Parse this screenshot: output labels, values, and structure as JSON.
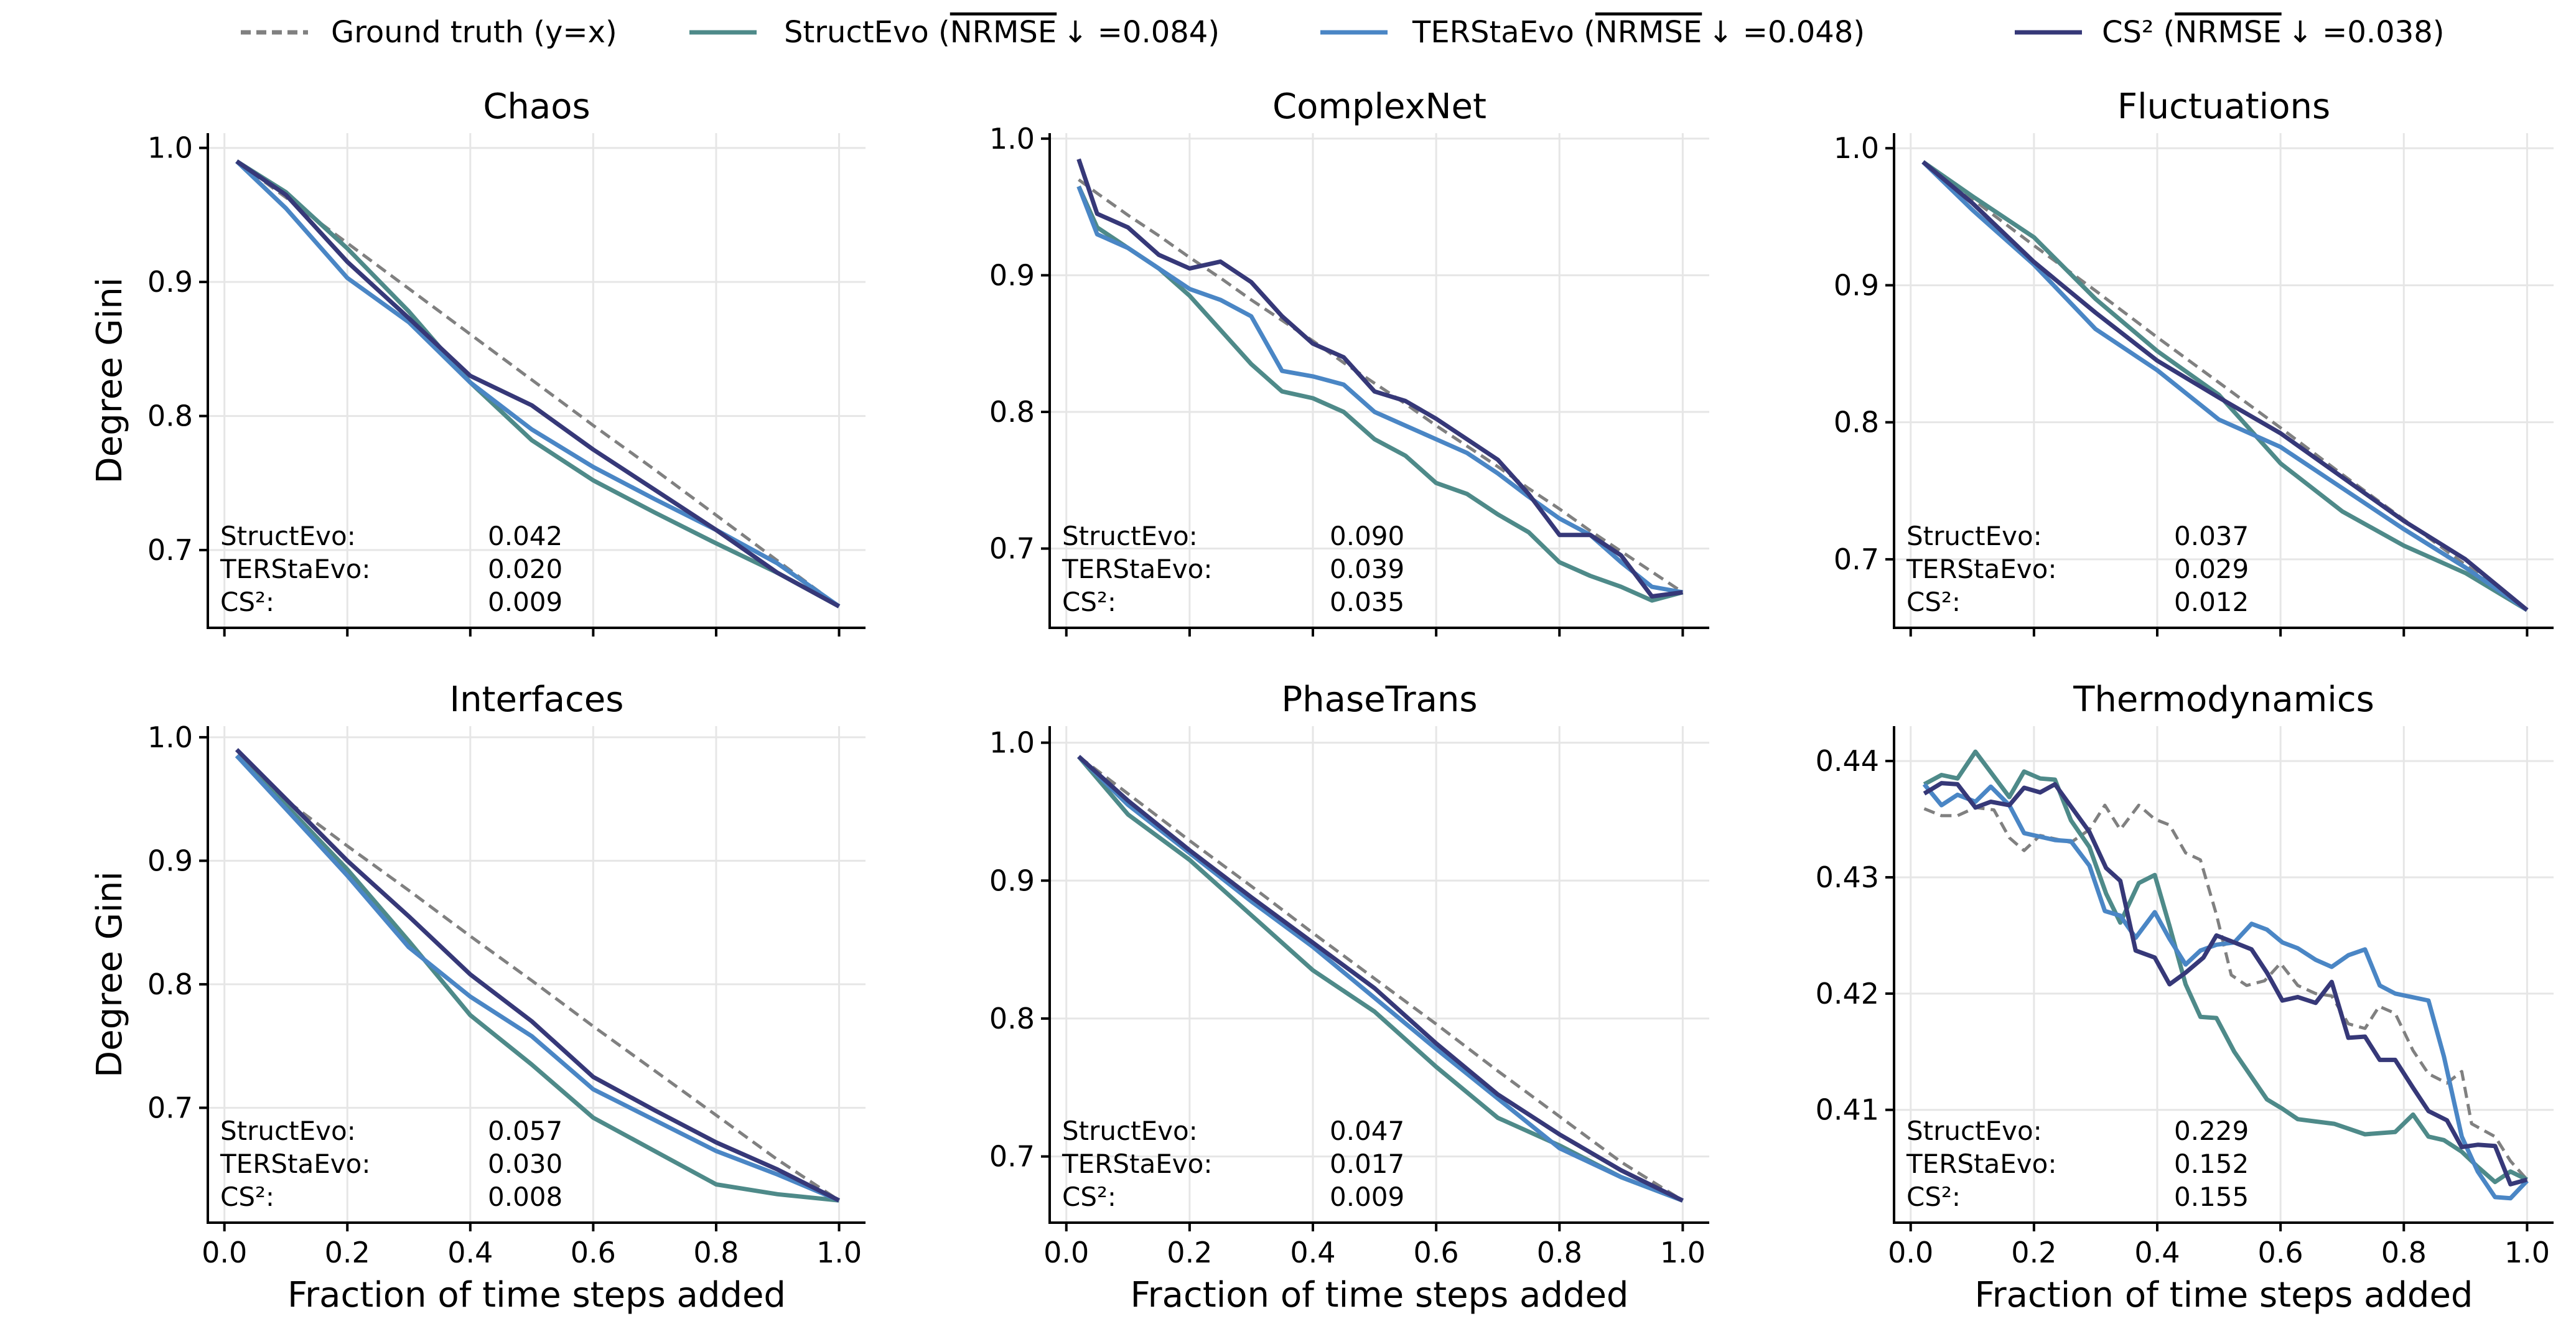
{
  "colors": {
    "ground_truth": "#808080",
    "StructEvo": "#4e8a89",
    "TERStaEvo": "#4a86c5",
    "CS2": "#363878"
  },
  "legend": [
    {
      "key": "ground_truth",
      "name": "Ground truth (y=x)",
      "metric": "",
      "suffix": ""
    },
    {
      "key": "StructEvo",
      "name": "StructEvo (",
      "metric": "NRMSE",
      "suffix": "↓ =0.084)"
    },
    {
      "key": "TERStaEvo",
      "name": "TERStaEvo (",
      "metric": "NRMSE",
      "suffix": "↓ =0.048)"
    },
    {
      "key": "CS2",
      "name": "CS² (",
      "metric": "NRMSE",
      "suffix": "↓ =0.038)"
    }
  ],
  "chart_data": [
    {
      "type": "line",
      "title": "Chaos",
      "xlabel": "",
      "ylabel": "Degree Gini",
      "xlim": [
        -0.027,
        1.043
      ],
      "ylim": [
        0.642,
        1.011
      ],
      "xticks": [
        "0.0",
        "0.2",
        "0.4",
        "0.6",
        "0.8",
        "1.0"
      ],
      "yticks": [
        "0.7",
        "0.8",
        "0.9",
        "1.0"
      ],
      "grid": true,
      "x": [
        0.02,
        0.1,
        0.2,
        0.3,
        0.4,
        0.5,
        0.6,
        0.7,
        0.8,
        0.9,
        1.0
      ],
      "series": [
        {
          "key": "ground_truth",
          "name": "Ground truth (y=x)",
          "values": [
            0.99,
            0.963,
            0.929,
            0.895,
            0.861,
            0.827,
            0.793,
            0.76,
            0.726,
            0.692,
            0.658
          ]
        },
        {
          "key": "StructEvo",
          "name": "StructEvo",
          "values": [
            0.99,
            0.967,
            0.925,
            0.878,
            0.825,
            0.782,
            0.752,
            0.728,
            0.705,
            0.683,
            0.658
          ]
        },
        {
          "key": "TERStaEvo",
          "name": "TERStaEvo",
          "values": [
            0.99,
            0.955,
            0.903,
            0.87,
            0.825,
            0.79,
            0.762,
            0.738,
            0.715,
            0.69,
            0.658
          ]
        },
        {
          "key": "CS2",
          "name": "CS²",
          "values": [
            0.99,
            0.965,
            0.915,
            0.873,
            0.83,
            0.808,
            0.775,
            0.745,
            0.715,
            0.683,
            0.658
          ]
        }
      ],
      "annotations": [
        {
          "label": "StructEvo:",
          "value": "0.042"
        },
        {
          "label": "TERStaEvo:",
          "value": "0.020"
        },
        {
          "label": "CS²:",
          "value": "0.009"
        }
      ]
    },
    {
      "type": "line",
      "title": "ComplexNet",
      "xlabel": "",
      "ylabel": "",
      "xlim": [
        -0.027,
        1.043
      ],
      "ylim": [
        0.642,
        1.004
      ],
      "xticks": [
        "0.0",
        "0.2",
        "0.4",
        "0.6",
        "0.8",
        "1.0"
      ],
      "yticks": [
        "0.7",
        "0.8",
        "0.9",
        "1.0"
      ],
      "grid": true,
      "x": [
        0.02,
        0.05,
        0.1,
        0.15,
        0.2,
        0.25,
        0.3,
        0.35,
        0.4,
        0.45,
        0.5,
        0.55,
        0.6,
        0.65,
        0.7,
        0.75,
        0.8,
        0.85,
        0.9,
        0.95,
        1.0
      ],
      "series": [
        {
          "key": "ground_truth",
          "name": "Ground truth (y=x)",
          "values": [
            0.97,
            0.96,
            0.944,
            0.929,
            0.913,
            0.898,
            0.882,
            0.867,
            0.852,
            0.836,
            0.821,
            0.806,
            0.79,
            0.775,
            0.76,
            0.744,
            0.729,
            0.713,
            0.698,
            0.683,
            0.668
          ]
        },
        {
          "key": "StructEvo",
          "name": "StructEvo",
          "values": [
            0.965,
            0.935,
            0.92,
            0.905,
            0.885,
            0.86,
            0.835,
            0.815,
            0.81,
            0.8,
            0.78,
            0.768,
            0.748,
            0.74,
            0.725,
            0.712,
            0.69,
            0.68,
            0.672,
            0.662,
            0.668
          ]
        },
        {
          "key": "TERStaEvo",
          "name": "TERStaEvo",
          "values": [
            0.965,
            0.93,
            0.92,
            0.905,
            0.89,
            0.882,
            0.87,
            0.83,
            0.826,
            0.82,
            0.8,
            0.79,
            0.78,
            0.77,
            0.755,
            0.738,
            0.722,
            0.71,
            0.69,
            0.672,
            0.668
          ]
        },
        {
          "key": "CS2",
          "name": "CS²",
          "values": [
            0.985,
            0.945,
            0.935,
            0.915,
            0.905,
            0.91,
            0.895,
            0.87,
            0.85,
            0.84,
            0.815,
            0.808,
            0.795,
            0.78,
            0.765,
            0.74,
            0.71,
            0.71,
            0.695,
            0.665,
            0.668
          ]
        }
      ],
      "annotations": [
        {
          "label": "StructEvo:",
          "value": "0.090"
        },
        {
          "label": "TERStaEvo:",
          "value": "0.039"
        },
        {
          "label": "CS²:",
          "value": "0.035"
        }
      ]
    },
    {
      "type": "line",
      "title": "Fluctuations",
      "xlabel": "",
      "ylabel": "",
      "xlim": [
        -0.027,
        1.043
      ],
      "ylim": [
        0.65,
        1.011
      ],
      "xticks": [
        "0.0",
        "0.2",
        "0.4",
        "0.6",
        "0.8",
        "1.0"
      ],
      "yticks": [
        "0.7",
        "0.8",
        "0.9",
        "1.0"
      ],
      "grid": true,
      "x": [
        0.02,
        0.1,
        0.2,
        0.3,
        0.4,
        0.5,
        0.6,
        0.7,
        0.8,
        0.9,
        1.0
      ],
      "series": [
        {
          "key": "ground_truth",
          "name": "Ground truth (y=x)",
          "values": [
            0.99,
            0.963,
            0.929,
            0.896,
            0.862,
            0.829,
            0.796,
            0.762,
            0.729,
            0.696,
            0.663
          ]
        },
        {
          "key": "StructEvo",
          "name": "StructEvo",
          "values": [
            0.99,
            0.965,
            0.935,
            0.89,
            0.852,
            0.82,
            0.77,
            0.735,
            0.71,
            0.69,
            0.663
          ]
        },
        {
          "key": "TERStaEvo",
          "name": "TERStaEvo",
          "values": [
            0.99,
            0.955,
            0.915,
            0.868,
            0.838,
            0.802,
            0.782,
            0.752,
            0.722,
            0.694,
            0.663
          ]
        },
        {
          "key": "CS2",
          "name": "CS²",
          "values": [
            0.99,
            0.96,
            0.917,
            0.88,
            0.845,
            0.818,
            0.792,
            0.76,
            0.728,
            0.7,
            0.663
          ]
        }
      ],
      "annotations": [
        {
          "label": "StructEvo:",
          "value": "0.037"
        },
        {
          "label": "TERStaEvo:",
          "value": "0.029"
        },
        {
          "label": "CS²:",
          "value": "0.012"
        }
      ]
    },
    {
      "type": "line",
      "title": "Interfaces",
      "xlabel": "Fraction of time steps added",
      "ylabel": "Degree Gini",
      "xlim": [
        -0.027,
        1.043
      ],
      "ylim": [
        0.607,
        1.009
      ],
      "xticks": [
        "0.0",
        "0.2",
        "0.4",
        "0.6",
        "0.8",
        "1.0"
      ],
      "yticks": [
        "0.7",
        "0.8",
        "0.9",
        "1.0"
      ],
      "grid": true,
      "x": [
        0.02,
        0.1,
        0.2,
        0.3,
        0.4,
        0.5,
        0.6,
        0.7,
        0.8,
        0.9,
        1.0
      ],
      "series": [
        {
          "key": "ground_truth",
          "name": "Ground truth (y=x)",
          "values": [
            0.985,
            0.949,
            0.912,
            0.876,
            0.839,
            0.803,
            0.766,
            0.73,
            0.694,
            0.658,
            0.625
          ]
        },
        {
          "key": "StructEvo",
          "name": "StructEvo",
          "values": [
            0.985,
            0.945,
            0.893,
            0.835,
            0.775,
            0.735,
            0.692,
            0.665,
            0.638,
            0.63,
            0.625
          ]
        },
        {
          "key": "TERStaEvo",
          "name": "TERStaEvo",
          "values": [
            0.985,
            0.942,
            0.888,
            0.83,
            0.79,
            0.758,
            0.715,
            0.69,
            0.665,
            0.646,
            0.625
          ]
        },
        {
          "key": "CS2",
          "name": "CS²",
          "values": [
            0.99,
            0.95,
            0.9,
            0.855,
            0.808,
            0.77,
            0.725,
            0.698,
            0.672,
            0.65,
            0.625
          ]
        }
      ],
      "annotations": [
        {
          "label": "StructEvo:",
          "value": "0.057"
        },
        {
          "label": "TERStaEvo:",
          "value": "0.030"
        },
        {
          "label": "CS²:",
          "value": "0.008"
        }
      ]
    },
    {
      "type": "line",
      "title": "PhaseTrans",
      "xlabel": "Fraction of time steps added",
      "ylabel": "",
      "xlim": [
        -0.027,
        1.043
      ],
      "ylim": [
        0.652,
        1.012
      ],
      "xticks": [
        "0.0",
        "0.2",
        "0.4",
        "0.6",
        "0.8",
        "1.0"
      ],
      "yticks": [
        "0.7",
        "0.8",
        "0.9",
        "1.0"
      ],
      "grid": true,
      "x": [
        0.02,
        0.1,
        0.2,
        0.3,
        0.4,
        0.5,
        0.6,
        0.7,
        0.8,
        0.9,
        1.0
      ],
      "series": [
        {
          "key": "ground_truth",
          "name": "Ground truth (y=x)",
          "values": [
            0.99,
            0.963,
            0.929,
            0.896,
            0.862,
            0.829,
            0.796,
            0.762,
            0.729,
            0.696,
            0.668
          ]
        },
        {
          "key": "StructEvo",
          "name": "StructEvo",
          "values": [
            0.99,
            0.948,
            0.915,
            0.875,
            0.835,
            0.805,
            0.765,
            0.728,
            0.708,
            0.685,
            0.668
          ]
        },
        {
          "key": "TERStaEvo",
          "name": "TERStaEvo",
          "values": [
            0.99,
            0.955,
            0.92,
            0.885,
            0.852,
            0.815,
            0.778,
            0.742,
            0.706,
            0.685,
            0.668
          ]
        },
        {
          "key": "CS2",
          "name": "CS²",
          "values": [
            0.99,
            0.958,
            0.922,
            0.888,
            0.855,
            0.822,
            0.782,
            0.745,
            0.716,
            0.69,
            0.668
          ]
        }
      ],
      "annotations": [
        {
          "label": "StructEvo:",
          "value": "0.047"
        },
        {
          "label": "TERStaEvo:",
          "value": "0.017"
        },
        {
          "label": "CS²:",
          "value": "0.009"
        }
      ]
    },
    {
      "type": "line",
      "title": "Thermodynamics",
      "xlabel": "Fraction of time steps added",
      "ylabel": "",
      "xlim": [
        -0.027,
        1.043
      ],
      "ylim": [
        0.4003,
        0.443
      ],
      "xticks": [
        "0.0",
        "0.2",
        "0.4",
        "0.6",
        "0.8",
        "1.0"
      ],
      "yticks": [
        "0.41",
        "0.42",
        "0.43",
        "0.44"
      ],
      "grid": true,
      "series": [
        {
          "key": "ground_truth",
          "name": "Ground truth (y=x)",
          "x": [
            0.022,
            0.05,
            0.076,
            0.105,
            0.135,
            0.16,
            0.184,
            0.21,
            0.26,
            0.29,
            0.315,
            0.34,
            0.37,
            0.396,
            0.42,
            0.446,
            0.47,
            0.496,
            0.52,
            0.545,
            0.574,
            0.6,
            0.628,
            0.657,
            0.683,
            0.71,
            0.737,
            0.76,
            0.786,
            0.815,
            0.84,
            0.87,
            0.894,
            0.91,
            0.948,
            0.973,
            1.0
          ],
          "values": [
            0.4359,
            0.4353,
            0.4353,
            0.436,
            0.4358,
            0.4334,
            0.4323,
            0.4336,
            0.433,
            0.4341,
            0.4362,
            0.4341,
            0.4362,
            0.435,
            0.4345,
            0.4321,
            0.4315,
            0.4268,
            0.4216,
            0.4207,
            0.4211,
            0.4226,
            0.4207,
            0.42,
            0.4198,
            0.4174,
            0.417,
            0.4189,
            0.4183,
            0.4151,
            0.4131,
            0.4123,
            0.4133,
            0.4088,
            0.4077,
            0.4056,
            0.404
          ]
        },
        {
          "key": "StructEvo",
          "name": "StructEvo",
          "x": [
            0.022,
            0.05,
            0.076,
            0.105,
            0.16,
            0.184,
            0.21,
            0.234,
            0.26,
            0.29,
            0.317,
            0.34,
            0.37,
            0.396,
            0.42,
            0.446,
            0.47,
            0.496,
            0.525,
            0.578,
            0.603,
            0.628,
            0.657,
            0.687,
            0.737,
            0.761,
            0.786,
            0.815,
            0.84,
            0.865,
            0.894,
            0.92,
            0.948,
            0.973,
            1.0
          ],
          "values": [
            0.438,
            0.4388,
            0.4385,
            0.4408,
            0.4369,
            0.4391,
            0.4385,
            0.4384,
            0.4349,
            0.4326,
            0.4286,
            0.4261,
            0.4295,
            0.4302,
            0.4258,
            0.4208,
            0.418,
            0.4179,
            0.415,
            0.4109,
            0.4101,
            0.4092,
            0.409,
            0.4088,
            0.4079,
            0.408,
            0.4081,
            0.4096,
            0.4077,
            0.4074,
            0.4064,
            0.4051,
            0.4038,
            0.4047,
            0.404
          ]
        },
        {
          "key": "TERStaEvo",
          "name": "TERStaEvo",
          "x": [
            0.022,
            0.05,
            0.076,
            0.105,
            0.13,
            0.16,
            0.184,
            0.234,
            0.26,
            0.29,
            0.315,
            0.34,
            0.365,
            0.396,
            0.42,
            0.446,
            0.47,
            0.496,
            0.525,
            0.553,
            0.578,
            0.603,
            0.628,
            0.657,
            0.683,
            0.71,
            0.737,
            0.761,
            0.786,
            0.84,
            0.865,
            0.894,
            0.92,
            0.948,
            0.973,
            1.0
          ],
          "values": [
            0.438,
            0.4362,
            0.4371,
            0.4365,
            0.4378,
            0.4362,
            0.4338,
            0.4332,
            0.4331,
            0.431,
            0.4271,
            0.4267,
            0.4248,
            0.427,
            0.4247,
            0.4225,
            0.4237,
            0.4242,
            0.4244,
            0.426,
            0.4255,
            0.4244,
            0.4239,
            0.4229,
            0.4223,
            0.4233,
            0.4238,
            0.4207,
            0.42,
            0.4194,
            0.4146,
            0.4077,
            0.4047,
            0.4025,
            0.4024,
            0.4039
          ]
        },
        {
          "key": "CS2",
          "name": "CS²",
          "x": [
            0.022,
            0.05,
            0.076,
            0.105,
            0.13,
            0.16,
            0.184,
            0.21,
            0.234,
            0.29,
            0.317,
            0.34,
            0.365,
            0.396,
            0.42,
            0.446,
            0.475,
            0.496,
            0.525,
            0.553,
            0.578,
            0.603,
            0.628,
            0.657,
            0.683,
            0.71,
            0.737,
            0.761,
            0.786,
            0.815,
            0.84,
            0.87,
            0.894,
            0.92,
            0.948,
            0.973,
            1.0
          ],
          "values": [
            0.4372,
            0.4381,
            0.438,
            0.436,
            0.4365,
            0.4362,
            0.4377,
            0.4373,
            0.438,
            0.4339,
            0.4308,
            0.4297,
            0.4237,
            0.4231,
            0.4208,
            0.4218,
            0.4231,
            0.425,
            0.4244,
            0.4238,
            0.4218,
            0.4194,
            0.4197,
            0.4192,
            0.421,
            0.4162,
            0.4163,
            0.4143,
            0.4143,
            0.4119,
            0.4099,
            0.4091,
            0.4068,
            0.407,
            0.4069,
            0.4036,
            0.404
          ]
        }
      ],
      "annotations": [
        {
          "label": "StructEvo:",
          "value": "0.229"
        },
        {
          "label": "TERStaEvo:",
          "value": "0.152"
        },
        {
          "label": "CS²:",
          "value": "0.155"
        }
      ]
    }
  ]
}
